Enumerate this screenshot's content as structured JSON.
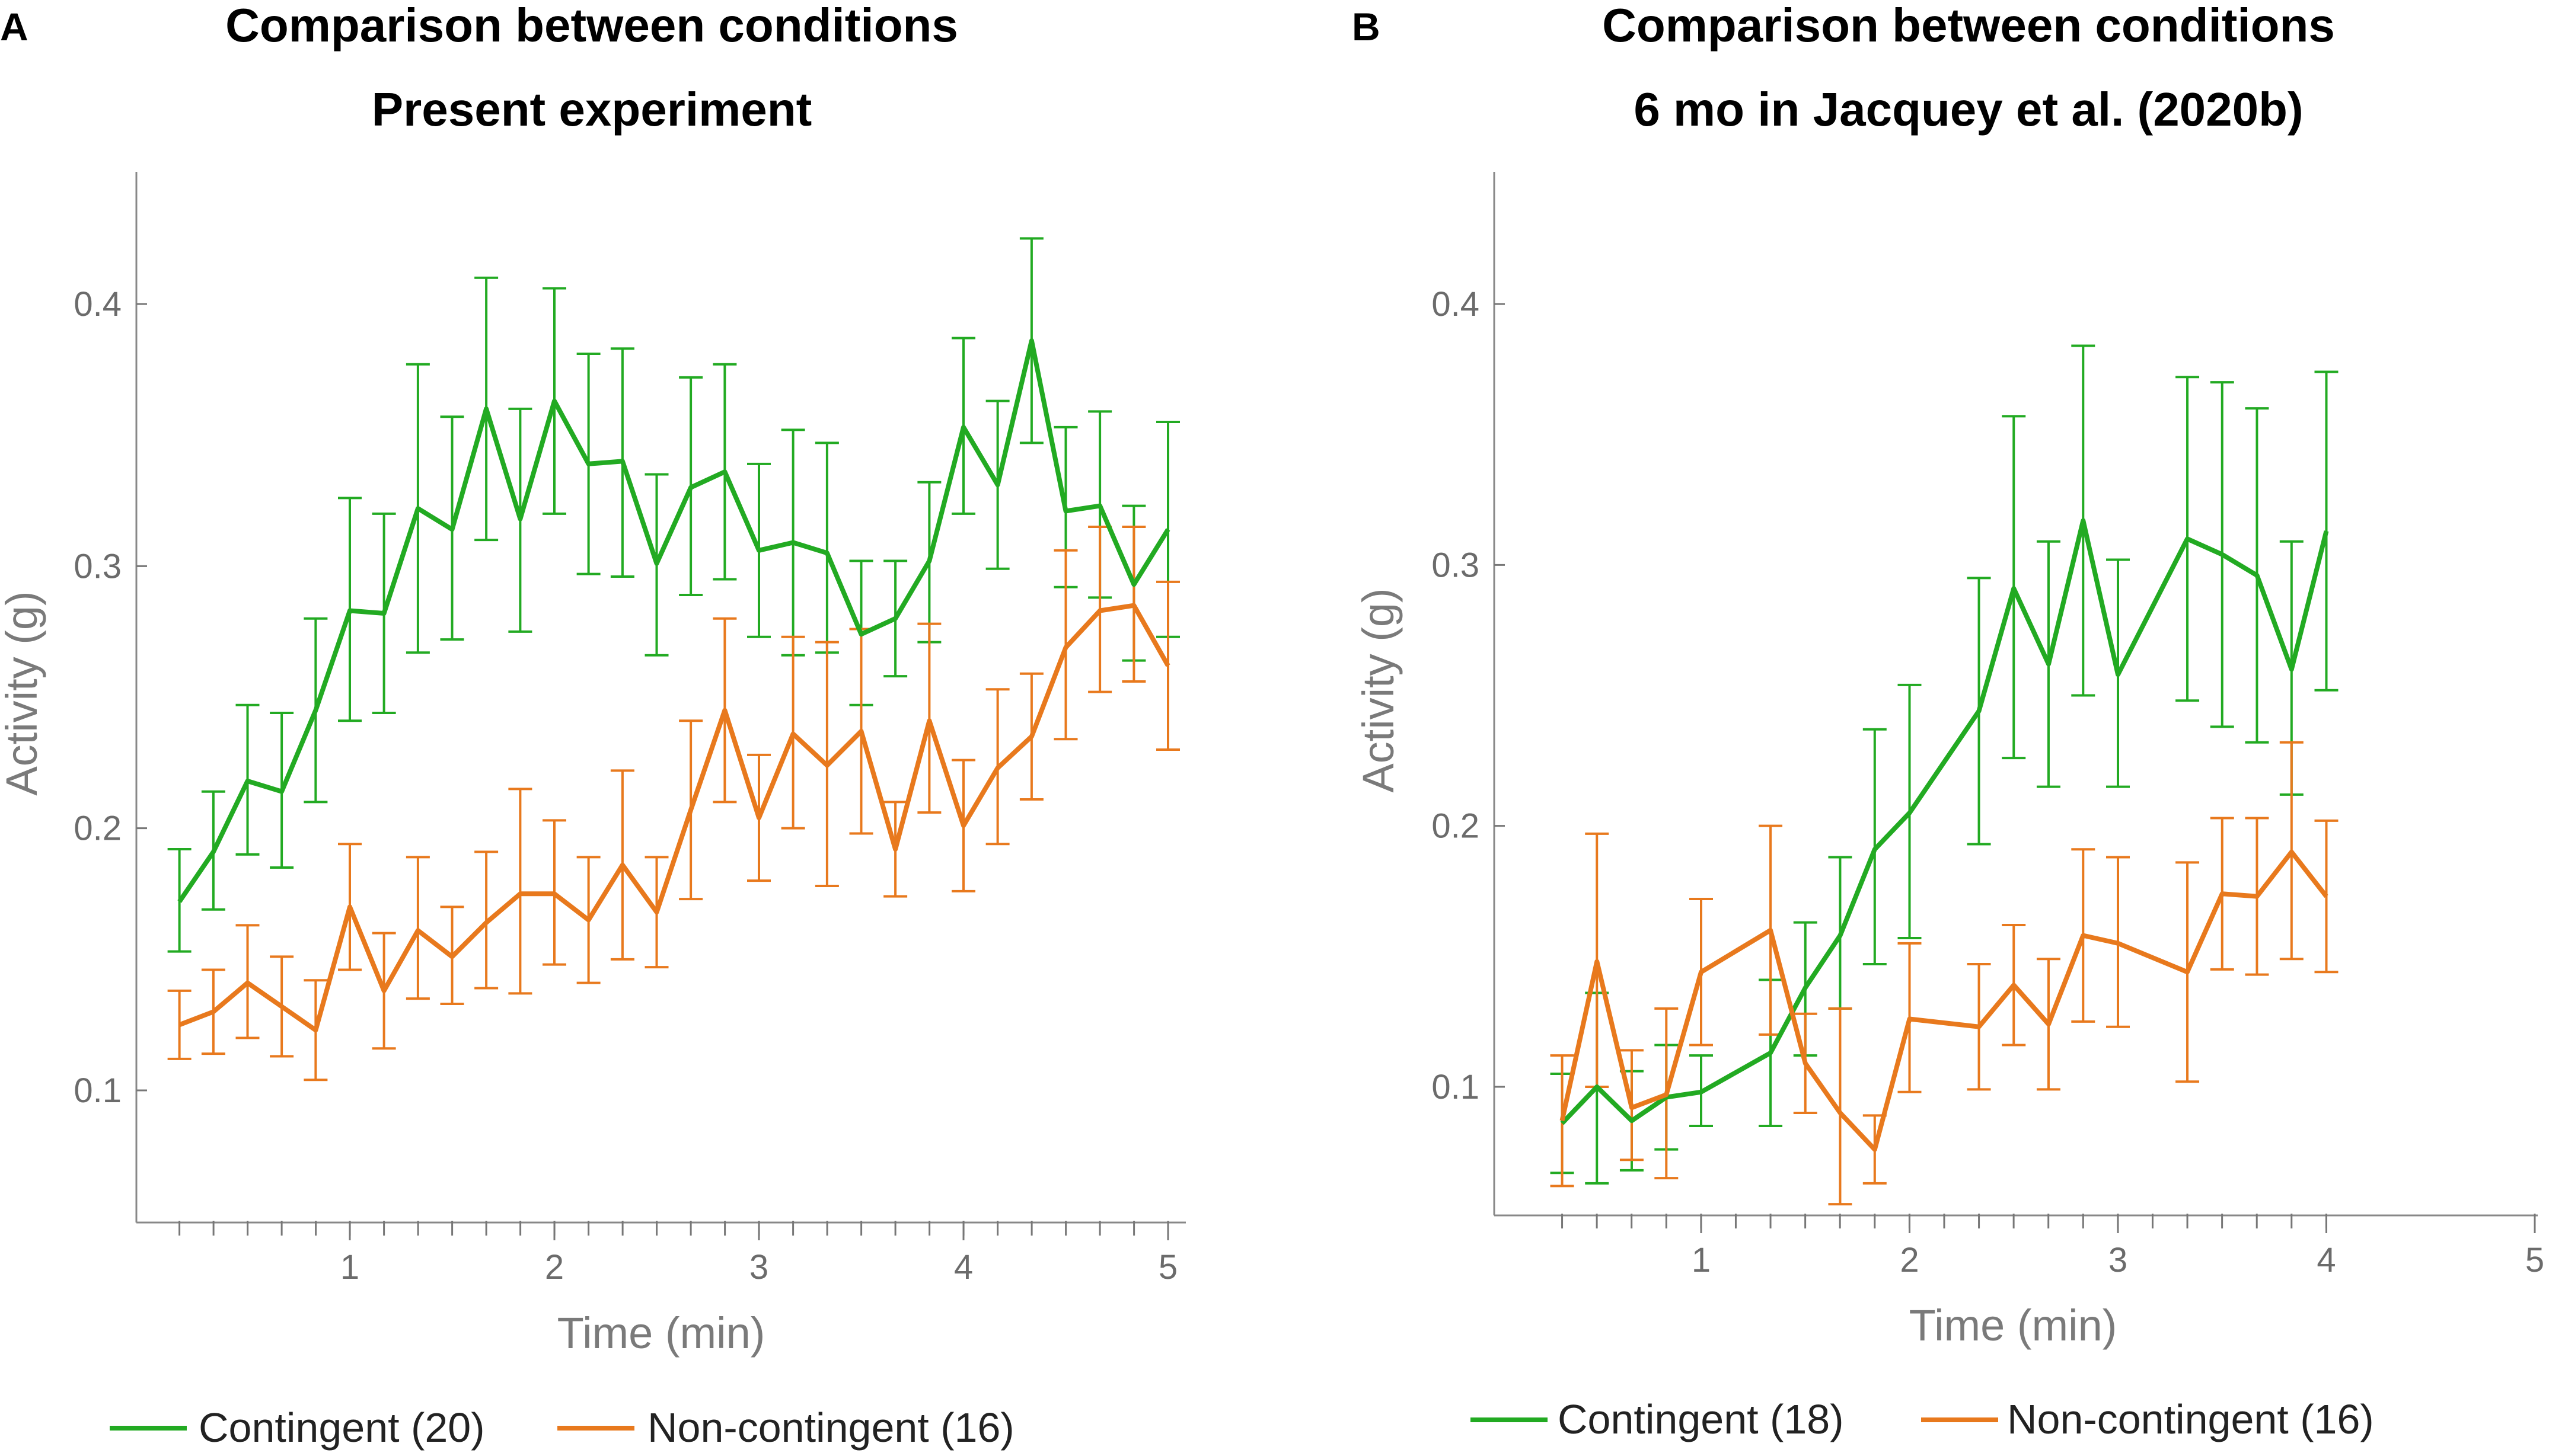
{
  "colors": {
    "contingent": "#22aa22",
    "noncontingent": "#e8791d",
    "axis": "#888888"
  },
  "chart_data": [
    {
      "type": "line",
      "panel": "A",
      "title": [
        "Comparison between conditions",
        "Present experiment"
      ],
      "xlabel": "Time (min)",
      "ylabel": "Activity (g)",
      "xlim": [
        0,
        5.05
      ],
      "ylim": [
        0.05,
        0.45
      ],
      "xticks": [
        1,
        2,
        3,
        4,
        5
      ],
      "xtick_labels": [
        "1",
        "2",
        "3",
        "4",
        "5"
      ],
      "yticks": [
        0.1,
        0.2,
        0.3,
        0.4
      ],
      "ytick_labels": [
        "0.1",
        "0.2",
        "0.3",
        "0.4"
      ],
      "x": [
        0.167,
        0.333,
        0.5,
        0.667,
        0.833,
        1.0,
        1.167,
        1.333,
        1.5,
        1.667,
        1.833,
        2.0,
        2.167,
        2.333,
        2.5,
        2.667,
        2.833,
        3.0,
        3.167,
        3.333,
        3.5,
        3.667,
        3.833,
        4.0,
        4.167,
        4.333,
        4.5,
        4.667,
        4.833,
        5.0
      ],
      "series": [
        {
          "name": "Contingent (20)",
          "values": [
            0.172,
            0.191,
            0.218,
            0.214,
            0.245,
            0.283,
            0.282,
            0.322,
            0.314,
            0.36,
            0.318,
            0.363,
            0.339,
            0.34,
            0.301,
            0.33,
            0.336,
            0.306,
            0.309,
            0.305,
            0.274,
            0.28,
            0.302,
            0.353,
            0.331,
            0.386,
            0.321,
            0.323,
            0.293,
            0.314
          ],
          "err_low": [
            0.153,
            0.169,
            0.19,
            0.185,
            0.21,
            0.241,
            0.244,
            0.267,
            0.272,
            0.31,
            0.275,
            0.32,
            0.297,
            0.296,
            0.266,
            0.289,
            0.295,
            0.273,
            0.266,
            0.267,
            0.247,
            0.258,
            0.271,
            0.32,
            0.299,
            0.347,
            0.292,
            0.288,
            0.264,
            0.273
          ],
          "err_high": [
            0.192,
            0.214,
            0.247,
            0.244,
            0.28,
            0.326,
            0.32,
            0.377,
            0.357,
            0.41,
            0.36,
            0.406,
            0.381,
            0.383,
            0.335,
            0.372,
            0.377,
            0.339,
            0.352,
            0.347,
            0.302,
            0.302,
            0.332,
            0.387,
            0.363,
            0.425,
            0.353,
            0.359,
            0.323,
            0.355
          ]
        },
        {
          "name": "Non-contingent (16)",
          "values": [
            0.125,
            0.13,
            0.141,
            0.132,
            0.123,
            0.17,
            0.138,
            0.161,
            0.151,
            0.164,
            0.175,
            0.175,
            0.165,
            0.186,
            0.168,
            0.207,
            0.245,
            0.204,
            0.236,
            0.224,
            0.237,
            0.192,
            0.241,
            0.201,
            0.223,
            0.235,
            0.269,
            0.283,
            0.285,
            0.262
          ],
          "err_low": [
            0.112,
            0.114,
            0.12,
            0.113,
            0.104,
            0.146,
            0.116,
            0.135,
            0.133,
            0.139,
            0.137,
            0.148,
            0.141,
            0.15,
            0.147,
            0.173,
            0.21,
            0.18,
            0.2,
            0.178,
            0.198,
            0.174,
            0.206,
            0.176,
            0.194,
            0.211,
            0.234,
            0.252,
            0.256,
            0.23
          ],
          "err_high": [
            0.138,
            0.146,
            0.163,
            0.151,
            0.142,
            0.194,
            0.16,
            0.189,
            0.17,
            0.191,
            0.215,
            0.203,
            0.189,
            0.222,
            0.189,
            0.241,
            0.28,
            0.228,
            0.273,
            0.271,
            0.276,
            0.21,
            0.278,
            0.226,
            0.253,
            0.259,
            0.306,
            0.315,
            0.315,
            0.294
          ]
        }
      ]
    },
    {
      "type": "line",
      "panel": "B",
      "title": [
        "Comparison between conditions",
        "6 mo in Jacquey et al. (2020b)"
      ],
      "xlabel": "Time (min)",
      "ylabel": "Activity (g)",
      "xlim": [
        0,
        5.0
      ],
      "ylim": [
        0.05,
        0.45
      ],
      "xticks": [
        1,
        2,
        3,
        4,
        5
      ],
      "xtick_labels": [
        "1",
        "2",
        "3",
        "4",
        "5"
      ],
      "yticks": [
        0.1,
        0.2,
        0.3,
        0.4
      ],
      "ytick_labels": [
        "0.1",
        "0.2",
        "0.3",
        "0.4"
      ],
      "x": [
        0.333,
        0.5,
        0.667,
        0.833,
        1.0,
        1.333,
        1.5,
        1.667,
        1.833,
        2.0,
        2.333,
        2.5,
        2.667,
        2.833,
        3.0,
        3.333,
        3.5,
        3.667,
        3.833,
        4.0
      ],
      "series": [
        {
          "name": "Contingent (18)",
          "values": [
            0.086,
            0.1,
            0.087,
            0.096,
            0.098,
            0.113,
            0.138,
            0.158,
            0.191,
            0.205,
            0.244,
            0.291,
            0.262,
            0.317,
            0.258,
            0.31,
            0.304,
            0.296,
            0.26,
            0.313
          ],
          "err_low": [
            0.067,
            0.063,
            0.068,
            0.076,
            0.085,
            0.085,
            0.112,
            0.13,
            0.147,
            0.157,
            0.193,
            0.226,
            0.215,
            0.25,
            0.215,
            0.248,
            0.238,
            0.232,
            0.212,
            0.252
          ],
          "err_high": [
            0.105,
            0.136,
            0.106,
            0.116,
            0.112,
            0.141,
            0.163,
            0.188,
            0.237,
            0.254,
            0.295,
            0.357,
            0.309,
            0.384,
            0.302,
            0.372,
            0.37,
            0.36,
            0.309,
            0.374
          ]
        },
        {
          "name": "Non-contingent (16)",
          "values": [
            0.087,
            0.148,
            0.092,
            0.097,
            0.144,
            0.16,
            0.109,
            0.09,
            0.076,
            0.126,
            0.123,
            0.139,
            0.124,
            0.158,
            0.155,
            0.144,
            0.174,
            0.173,
            0.19,
            0.173
          ],
          "err_low": [
            0.062,
            0.1,
            0.072,
            0.065,
            0.116,
            0.12,
            0.09,
            0.055,
            0.063,
            0.098,
            0.099,
            0.116,
            0.099,
            0.125,
            0.123,
            0.102,
            0.145,
            0.143,
            0.149,
            0.144
          ],
          "err_high": [
            0.112,
            0.197,
            0.114,
            0.13,
            0.172,
            0.2,
            0.128,
            0.13,
            0.089,
            0.155,
            0.147,
            0.162,
            0.149,
            0.191,
            0.188,
            0.186,
            0.203,
            0.203,
            0.232,
            0.202
          ]
        }
      ]
    }
  ]
}
